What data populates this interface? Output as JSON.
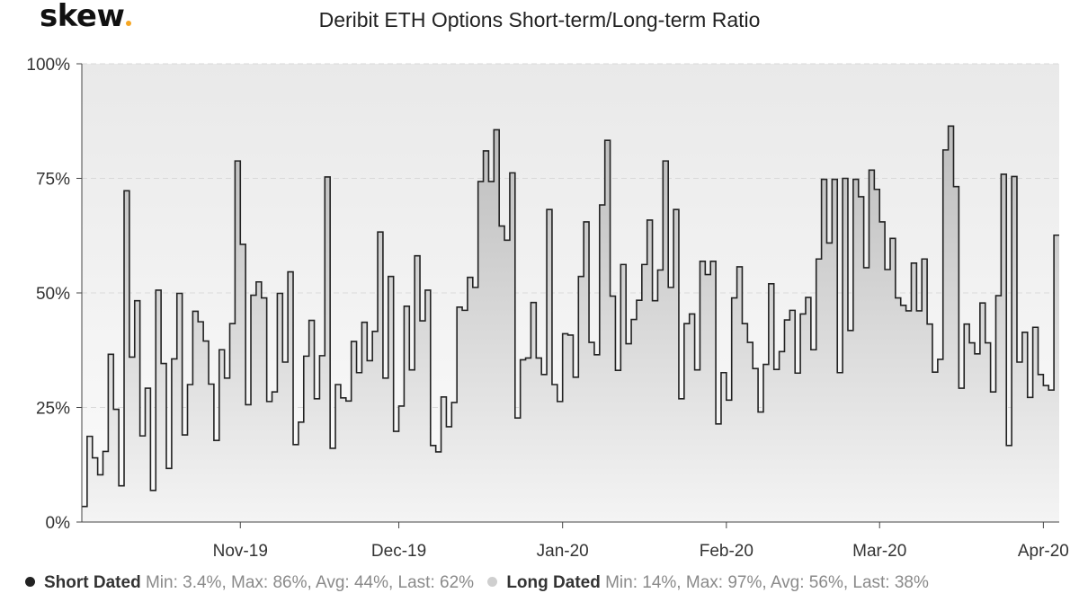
{
  "header": {
    "logo_text": "skew",
    "logo_dot_color": "#f5a623",
    "title": "Deribit ETH Options Short-term/Long-term Ratio"
  },
  "legend": {
    "short": {
      "name": "Short Dated",
      "stats": "Min: 3.4%, Max: 86%, Avg: 44%, Last: 62%",
      "color": "#222222"
    },
    "long": {
      "name": "Long Dated",
      "stats": "Min: 14%, Max: 97%, Avg: 56%, Last: 38%",
      "color": "#cfcfcf"
    }
  },
  "chart_data": {
    "type": "area",
    "step": true,
    "title": "Deribit ETH Options Short-term/Long-term Ratio",
    "xlabel": "",
    "ylabel": "",
    "ylim": [
      0,
      100
    ],
    "yticks": [
      "0%",
      "25%",
      "50%",
      "75%",
      "100%"
    ],
    "ytick_values": [
      0,
      25,
      50,
      75,
      100
    ],
    "xticks": [
      {
        "date": "2019-11-01",
        "label": "Nov-19"
      },
      {
        "date": "2019-12-01",
        "label": "Dec-19"
      },
      {
        "date": "2020-01-01",
        "label": "Jan-20"
      },
      {
        "date": "2020-02-01",
        "label": "Feb-20"
      },
      {
        "date": "2020-03-01",
        "label": "Mar-20"
      },
      {
        "date": "2020-04-01",
        "label": "Apr-20"
      }
    ],
    "x_range": [
      "2019-10-02",
      "2020-04-04"
    ],
    "grid": true,
    "legend_position": "bottom-left",
    "series": [
      {
        "name": "Short Dated",
        "start_date": "2019-10-02",
        "color": "#222222",
        "fill": "#cccccc",
        "values": [
          3.4,
          18.7,
          14,
          10.3,
          15.4,
          36.6,
          24.6,
          7.9,
          72.3,
          36,
          48.3,
          18.8,
          29.2,
          6.9,
          50.6,
          34.6,
          11.7,
          35.6,
          49.9,
          19,
          30,
          46,
          43.7,
          39.5,
          30.1,
          17.8,
          37.6,
          31.4,
          43.3,
          78.8,
          60.6,
          25.6,
          49.5,
          52.4,
          48.9,
          26.3,
          28.4,
          49.9,
          34.9,
          54.6,
          16.9,
          21.8,
          36.2,
          44,
          26.9,
          36.3,
          75.3,
          16.1,
          30,
          27.1,
          26.4,
          39.4,
          32.6,
          43.6,
          35.2,
          41.6,
          63.3,
          31.4,
          53.6,
          19.8,
          25.3,
          47.1,
          33.2,
          58.1,
          43.9,
          50.6,
          16.7,
          15.3,
          27.3,
          20.8,
          26.1,
          46.9,
          46.2,
          53.4,
          51.2,
          74.3,
          81,
          74.3,
          85.6,
          64.6,
          61.5,
          76.2,
          22.7,
          35.4,
          35.8,
          47.9,
          35.8,
          32.2,
          68.2,
          30,
          26.3,
          41.1,
          40.8,
          31.6,
          53.6,
          65.5,
          39.2,
          36.5,
          69.2,
          83.3,
          49.3,
          33.1,
          56.2,
          38.9,
          44.2,
          48.4,
          56.2,
          65.9,
          48.3,
          55,
          78.8,
          51.2,
          68.2,
          26.9,
          43.3,
          45.4,
          33.2,
          56.9,
          54,
          56.9,
          21.4,
          32.6,
          26.6,
          48.9,
          55.7,
          43.3,
          39.2,
          33.5,
          24,
          34.4,
          52,
          33.3,
          37.2,
          44.1,
          46.2,
          32.5,
          45.4,
          49,
          37.6,
          57.4,
          74.8,
          60.9,
          74.8,
          32.6,
          75,
          41.8,
          74.8,
          71,
          55.5,
          76.8,
          72.6,
          65.5,
          55.1,
          61.9,
          48.9,
          47.3,
          46.1,
          56.5,
          46.1,
          57.4,
          43.2,
          32.7,
          35.5,
          81.2,
          86.4,
          73.2,
          29.2,
          43.2,
          39.1,
          36.7,
          47.8,
          39.1,
          28.4,
          49.4,
          75.9,
          16.7,
          75.4,
          34.9,
          41.4,
          27.2,
          42.5,
          32.2,
          29.8,
          28.8,
          62.6
        ]
      }
    ]
  }
}
